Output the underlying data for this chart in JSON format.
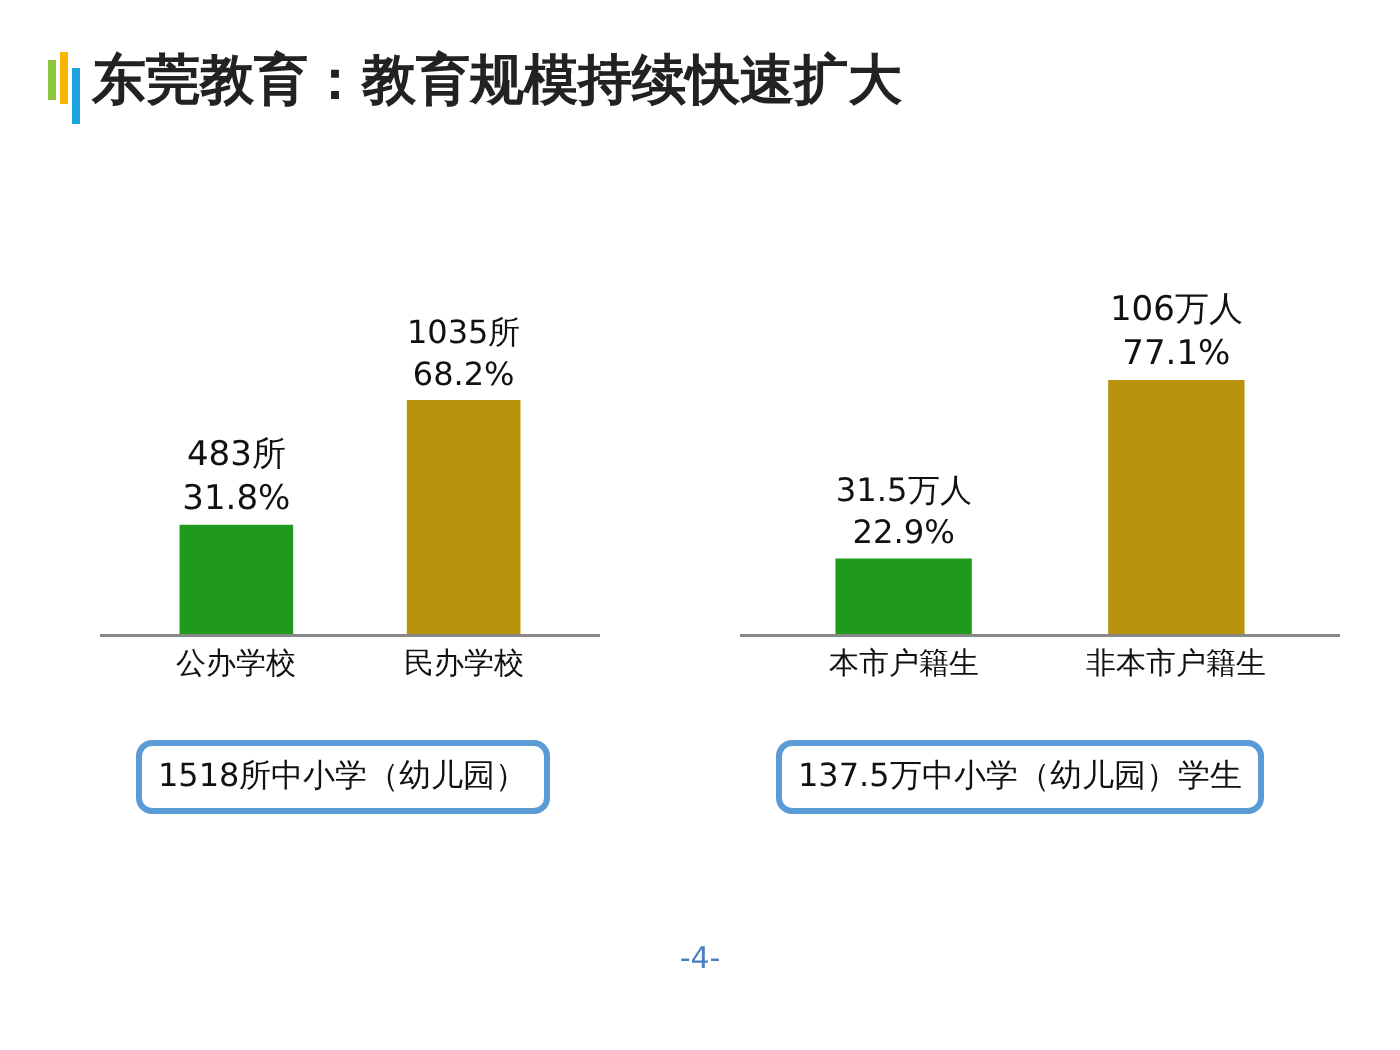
{
  "chart_data": [
    {
      "type": "bar",
      "title": "东莞教育：教育规模持续快速扩大",
      "categories": [
        "公办学校",
        "民办学校"
      ],
      "values": [
        483,
        1035
      ],
      "colors": [
        "#1f9a1f",
        "#b8920c"
      ],
      "value_labels": [
        "483所\n31.8%",
        "1035所\n68.2%"
      ],
      "annotations": [
        "1518所中小学（幼儿园）"
      ]
    },
    {
      "type": "bar",
      "categories": [
        "本市户籍生",
        "非本市户籍生"
      ],
      "values": [
        31.5,
        106
      ],
      "colors": [
        "#1f9a1f",
        "#b8920c"
      ],
      "value_labels": [
        "31.5万人\n22.9%",
        "106万人\n77.1%"
      ],
      "annotations": [
        "137.5万中小学（幼儿园）学生",
        "-4-"
      ]
    }
  ]
}
